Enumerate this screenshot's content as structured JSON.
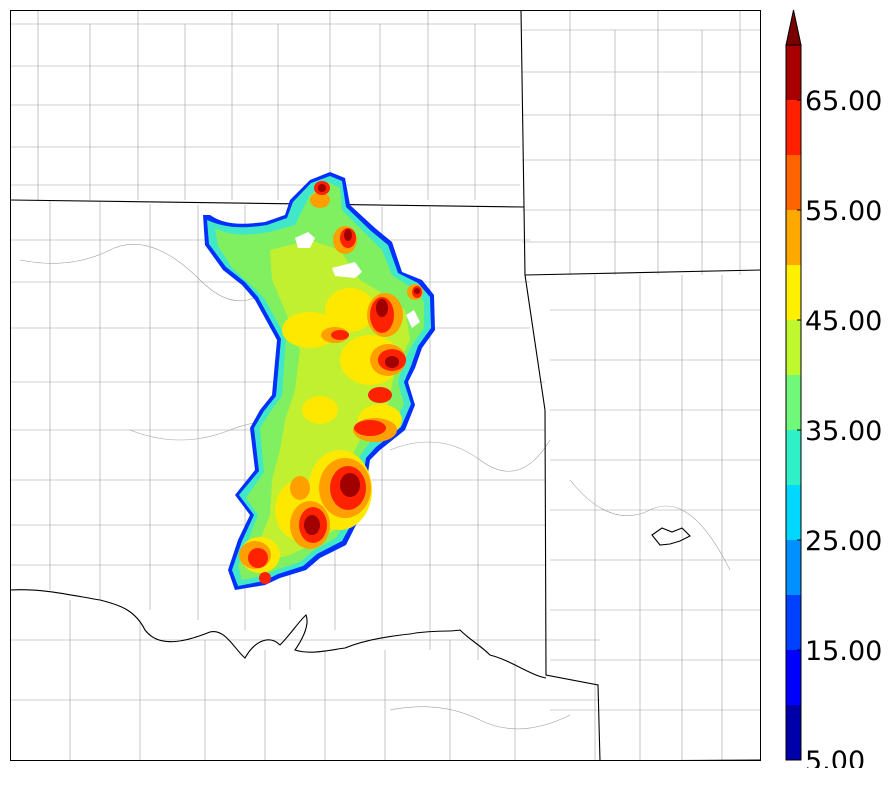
{
  "map": {
    "background": "#ffffff",
    "state_line_color": "#000000",
    "county_line_color": "#9a9a9a",
    "field_colors": {
      "blue_edge": "#0033ff",
      "cyan": "#00e5ff",
      "aqua": "#3fe8c0",
      "light_green": "#8cf060",
      "yellow_green": "#c8f030",
      "yellow": "#ffea00",
      "orange": "#ffa000",
      "dark_orange": "#ff6600",
      "red": "#ff2200",
      "dark_red": "#a00000"
    }
  },
  "colorbar": {
    "min": 5,
    "max": 70,
    "extend": "max",
    "bins": [
      {
        "from": 5,
        "to": 10,
        "color": "#0000a8"
      },
      {
        "from": 10,
        "to": 15,
        "color": "#0000ff"
      },
      {
        "from": 15,
        "to": 20,
        "color": "#0040ff"
      },
      {
        "from": 20,
        "to": 25,
        "color": "#0090ff"
      },
      {
        "from": 25,
        "to": 30,
        "color": "#00d8ff"
      },
      {
        "from": 30,
        "to": 35,
        "color": "#30f0c8"
      },
      {
        "from": 35,
        "to": 40,
        "color": "#70f878"
      },
      {
        "from": 40,
        "to": 45,
        "color": "#c0f830"
      },
      {
        "from": 45,
        "to": 50,
        "color": "#fff000"
      },
      {
        "from": 50,
        "to": 55,
        "color": "#ffa800"
      },
      {
        "from": 55,
        "to": 60,
        "color": "#ff6400"
      },
      {
        "from": 60,
        "to": 65,
        "color": "#ff2000"
      },
      {
        "from": 65,
        "to": 70,
        "color": "#a80000"
      }
    ],
    "extend_color": "#780000",
    "ticks": [
      {
        "value": 5,
        "label": "5.00"
      },
      {
        "value": 15,
        "label": "15.00"
      },
      {
        "value": 25,
        "label": "25.00"
      },
      {
        "value": 35,
        "label": "35.00"
      },
      {
        "value": 45,
        "label": "45.00"
      },
      {
        "value": 55,
        "label": "55.00"
      },
      {
        "value": 65,
        "label": "65.00"
      }
    ]
  }
}
